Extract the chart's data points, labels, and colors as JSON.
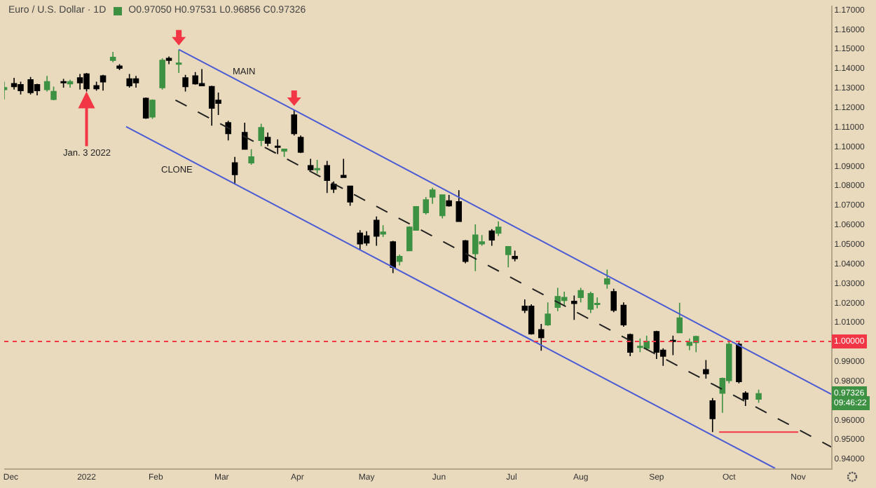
{
  "chart_data": {
    "type": "candlestick",
    "title": "Euro / U.S. Dollar · 1D",
    "subtitle": "O0.97050 H0.97531 L0.96856 C0.97326",
    "legend": false,
    "xlim": [
      "2021-11-29",
      "2022-11-15"
    ],
    "xticks": [
      {
        "value": "2021-12-01",
        "label": "Dec"
      },
      {
        "value": "2022-01-03",
        "label": "2022"
      },
      {
        "value": "2022-02-01",
        "label": "Feb"
      },
      {
        "value": "2022-03-01",
        "label": "Mar"
      },
      {
        "value": "2022-04-01",
        "label": "Apr"
      },
      {
        "value": "2022-05-02",
        "label": "May"
      },
      {
        "value": "2022-06-01",
        "label": "Jun"
      },
      {
        "value": "2022-07-01",
        "label": "Jul"
      },
      {
        "value": "2022-08-01",
        "label": "Aug"
      },
      {
        "value": "2022-09-01",
        "label": "Sep"
      },
      {
        "value": "2022-10-03",
        "label": "Oct"
      },
      {
        "value": "2022-11-01",
        "label": "Nov"
      }
    ],
    "ylim": [
      0.935,
      1.172
    ],
    "yticks": [
      {
        "value": 0.94,
        "label": "0.94000"
      },
      {
        "value": 0.95,
        "label": "0.95000"
      },
      {
        "value": 0.96,
        "label": "0.96000"
      },
      {
        "value": 0.98,
        "label": "0.98000"
      },
      {
        "value": 0.99,
        "label": "0.99000"
      },
      {
        "value": 1.01,
        "label": "1.01000"
      },
      {
        "value": 1.02,
        "label": "1.02000"
      },
      {
        "value": 1.03,
        "label": "1.03000"
      },
      {
        "value": 1.04,
        "label": "1.04000"
      },
      {
        "value": 1.05,
        "label": "1.05000"
      },
      {
        "value": 1.06,
        "label": "1.06000"
      },
      {
        "value": 1.07,
        "label": "1.07000"
      },
      {
        "value": 1.08,
        "label": "1.08000"
      },
      {
        "value": 1.09,
        "label": "1.09000"
      },
      {
        "value": 1.1,
        "label": "1.10000"
      },
      {
        "value": 1.11,
        "label": "1.11000"
      },
      {
        "value": 1.12,
        "label": "1.12000"
      },
      {
        "value": 1.13,
        "label": "1.13000"
      },
      {
        "value": 1.14,
        "label": "1.14000"
      },
      {
        "value": 1.15,
        "label": "1.15000"
      },
      {
        "value": 1.16,
        "label": "1.16000"
      },
      {
        "value": 1.17,
        "label": "1.17000"
      }
    ],
    "ref_lines": [
      {
        "axis": "y",
        "value": 1.0,
        "label": "1.00000",
        "color": "#f23645",
        "line_style": "dotted"
      }
    ],
    "annotations": [
      {
        "text": "Jan. 3 2022",
        "x": "2022-01-03",
        "y": 1.128
      },
      {
        "text": "0.97326",
        "y": 0.97326
      },
      "09:46:22"
    ],
    "series": [
      {
        "color": "#3d9142",
        "x": [
          "2021-11-29",
          "2021-12-16",
          "2021-12-20",
          "2021-12-27",
          "2022-01-13",
          "2022-01-31",
          "2022-02-03",
          "2022-02-10",
          "2022-03-14",
          "2022-03-17",
          "2022-03-28",
          "2022-04-11",
          "2022-05-09",
          "2022-05-16",
          "2022-05-19",
          "2022-05-23",
          "2022-05-26",
          "2022-05-30",
          "2022-06-02",
          "2022-06-16",
          "2022-06-20",
          "2022-06-27",
          "2022-06-30",
          "2022-07-18",
          "2022-07-21",
          "2022-07-25",
          "2022-08-01",
          "2022-08-04",
          "2022-08-08",
          "2022-08-11",
          "2022-08-25",
          "2022-08-29",
          "2022-09-12",
          "2022-09-15",
          "2022-09-19",
          "2022-09-29",
          "2022-10-03",
          "2022-10-14"
        ],
        "ohlc": [
          [
            1.129,
            1.133,
            1.124,
            1.13
          ],
          [
            1.129,
            1.136,
            1.128,
            1.133
          ],
          [
            1.124,
            1.1305,
            1.1235,
            1.128
          ],
          [
            1.132,
            1.134,
            1.13,
            1.133
          ],
          [
            1.144,
            1.1483,
            1.143,
            1.1455
          ],
          [
            1.115,
            1.124,
            1.114,
            1.1235
          ],
          [
            1.13,
            1.145,
            1.129,
            1.144
          ],
          [
            1.142,
            1.1495,
            1.1375,
            1.1425
          ],
          [
            1.0915,
            1.0985,
            1.0905,
            1.0945
          ],
          [
            1.103,
            1.1115,
            1.1,
            1.1095
          ],
          [
            1.0975,
            1.0985,
            1.0945,
            1.0985
          ],
          [
            1.088,
            1.093,
            1.086,
            1.0885
          ],
          [
            1.055,
            1.0595,
            1.0535,
            1.056
          ],
          [
            1.041,
            1.0445,
            1.039,
            1.0435
          ],
          [
            1.0465,
            1.059,
            1.0465,
            1.0585
          ],
          [
            1.057,
            1.069,
            1.057,
            1.069
          ],
          [
            1.066,
            1.074,
            1.065,
            1.0725
          ],
          [
            1.074,
            1.0787,
            1.0705,
            1.0775
          ],
          [
            1.0645,
            1.075,
            1.063,
            1.075
          ],
          [
            1.045,
            1.06,
            1.036,
            1.0545
          ],
          [
            1.05,
            1.0545,
            1.049,
            1.051
          ],
          [
            1.0555,
            1.0615,
            1.054,
            1.0585
          ],
          [
            1.0445,
            1.0485,
            1.038,
            1.0485
          ],
          [
            1.0085,
            1.02,
            1.008,
            1.014
          ],
          [
            1.0175,
            1.0275,
            1.0155,
            1.023
          ],
          [
            1.021,
            1.0255,
            1.018,
            1.0225
          ],
          [
            1.0225,
            1.0275,
            1.02,
            1.026
          ],
          [
            1.0165,
            1.0255,
            1.0145,
            1.0245
          ],
          [
            1.019,
            1.0225,
            1.017,
            1.0195
          ],
          [
            1.0295,
            1.0368,
            1.027,
            1.032
          ],
          [
            0.997,
            1.0015,
            0.9945,
            0.9975
          ],
          [
            0.9965,
            1.003,
            0.9955,
            1.0
          ],
          [
            1.0045,
            1.0198,
            1.0045,
            1.012
          ],
          [
            0.998,
            1.0015,
            0.9955,
            0.9995
          ],
          [
            0.9995,
            1.003,
            0.9945,
            1.0025
          ],
          [
            0.9735,
            0.9815,
            0.9635,
            0.981
          ],
          [
            0.98,
            0.9999,
            0.9785,
            0.9985
          ],
          [
            0.9705,
            0.97531,
            0.96856,
            0.97326
          ]
        ]
      },
      {
        "color": "#000000",
        "x": [
          "2021-12-02",
          "2021-12-06",
          "2021-12-09",
          "2021-12-13",
          "2021-12-23",
          "2021-12-30",
          "2022-01-03",
          "2022-01-06",
          "2022-01-10",
          "2022-01-17",
          "2022-01-20",
          "2022-01-24",
          "2022-01-27",
          "2022-02-07",
          "2022-02-14",
          "2022-02-17",
          "2022-02-21",
          "2022-02-24",
          "2022-02-28",
          "2022-03-03",
          "2022-03-07",
          "2022-03-10",
          "2022-03-21",
          "2022-03-24",
          "2022-03-31",
          "2022-04-04",
          "2022-04-07",
          "2022-04-14",
          "2022-04-18",
          "2022-04-21",
          "2022-04-25",
          "2022-04-28",
          "2022-05-02",
          "2022-05-05",
          "2022-05-12",
          "2022-06-06",
          "2022-06-09",
          "2022-06-13",
          "2022-06-23",
          "2022-07-04",
          "2022-07-07",
          "2022-07-11",
          "2022-07-14",
          "2022-07-28",
          "2022-08-15",
          "2022-08-18",
          "2022-08-22",
          "2022-09-01",
          "2022-09-05",
          "2022-09-08",
          "2022-09-22",
          "2022-09-26",
          "2022-10-06",
          "2022-10-10"
        ],
        "ohlc": [
          [
            1.132,
            1.135,
            1.129,
            1.1305
          ],
          [
            1.1315,
            1.133,
            1.1265,
            1.1285
          ],
          [
            1.134,
            1.1355,
            1.1265,
            1.1275
          ],
          [
            1.1315,
            1.132,
            1.126,
            1.1285
          ],
          [
            1.133,
            1.1345,
            1.13,
            1.1325
          ],
          [
            1.135,
            1.137,
            1.129,
            1.1325
          ],
          [
            1.137,
            1.1375,
            1.128,
            1.1295
          ],
          [
            1.131,
            1.133,
            1.1285,
            1.1295
          ],
          [
            1.136,
            1.1365,
            1.1285,
            1.133
          ],
          [
            1.141,
            1.142,
            1.139,
            1.14
          ],
          [
            1.1345,
            1.137,
            1.13,
            1.131
          ],
          [
            1.1345,
            1.136,
            1.13,
            1.1325
          ],
          [
            1.1245,
            1.125,
            1.114,
            1.1145
          ],
          [
            1.145,
            1.146,
            1.142,
            1.144
          ],
          [
            1.135,
            1.1365,
            1.128,
            1.1305
          ],
          [
            1.136,
            1.138,
            1.1315,
            1.132
          ],
          [
            1.132,
            1.1395,
            1.131,
            1.131
          ],
          [
            1.1305,
            1.131,
            1.1105,
            1.1195
          ],
          [
            1.1235,
            1.1275,
            1.116,
            1.122
          ],
          [
            1.112,
            1.113,
            1.103,
            1.1065
          ],
          [
            1.0915,
            1.0945,
            1.0805,
            1.0855
          ],
          [
            1.107,
            1.112,
            1.0985,
            1.0985
          ],
          [
            1.1045,
            1.107,
            1.1,
            1.1015
          ],
          [
            1.1,
            1.1035,
            1.096,
            1.0995
          ],
          [
            1.116,
            1.1185,
            1.1055,
            1.1065
          ],
          [
            1.1045,
            1.1055,
            1.0965,
            1.097
          ],
          [
            1.09,
            1.0935,
            1.0875,
            1.088
          ],
          [
            1.09,
            1.0925,
            1.076,
            1.0825
          ],
          [
            1.0805,
            1.082,
            1.076,
            1.078
          ],
          [
            1.085,
            1.0935,
            1.084,
            1.084
          ],
          [
            1.0795,
            1.0795,
            1.0695,
            1.0715
          ],
          [
            1.0555,
            1.057,
            1.047,
            1.05
          ],
          [
            1.054,
            1.0565,
            1.049,
            1.0505
          ],
          [
            1.062,
            1.064,
            1.049,
            1.054
          ],
          [
            1.051,
            1.0515,
            1.035,
            1.038
          ],
          [
            1.072,
            1.075,
            1.069,
            1.0695
          ],
          [
            1.0715,
            1.0775,
            1.0615,
            1.0615
          ],
          [
            1.0515,
            1.052,
            1.04,
            1.041
          ],
          [
            1.0565,
            1.0575,
            1.049,
            1.052
          ],
          [
            1.0435,
            1.0465,
            1.041,
            1.0425
          ],
          [
            1.018,
            1.0215,
            1.0145,
            1.016
          ],
          [
            1.018,
            1.019,
            1.0035,
            1.004
          ],
          [
            1.006,
            1.009,
            0.9952,
            1.002
          ],
          [
            1.0205,
            1.0235,
            1.011,
            1.0195
          ],
          [
            1.0255,
            1.027,
            1.015,
            1.016
          ],
          [
            1.0185,
            1.02,
            1.0075,
            1.0085
          ],
          [
            1.0035,
            1.004,
            0.9925,
            0.9945
          ],
          [
            1.005,
            1.0055,
            0.991,
            0.9945
          ],
          [
            0.9955,
            0.9965,
            0.9875,
            0.9925
          ],
          [
            1.0005,
            1.003,
            0.993,
            1.0
          ],
          [
            0.9855,
            0.9905,
            0.981,
            0.9835
          ],
          [
            0.9695,
            0.971,
            0.9536,
            0.9605
          ],
          [
            0.9985,
            0.9995,
            0.9785,
            0.9795
          ],
          [
            0.9735,
            0.9745,
            0.967,
            0.9705
          ]
        ]
      },
      {
        "type": "line",
        "name": "MAIN",
        "color": "#4a5bd4",
        "line_style": "solid",
        "x": [
          "2022-02-10",
          "2022-03-31",
          "2022-11-15"
        ],
        "values": [
          1.1495,
          1.1185,
          0.973
        ]
      },
      {
        "type": "line",
        "name": "CLONE",
        "color": "#4a5bd4",
        "line_style": "solid",
        "x": [
          "2022-01-19",
          "2022-10-21"
        ],
        "values": [
          1.11,
          0.935
        ]
      },
      {
        "type": "line",
        "color": "#222222",
        "line_style": "dashed",
        "x": [
          "2022-02-09",
          "2022-11-15"
        ],
        "values": [
          1.1236,
          0.946
        ]
      },
      {
        "type": "line",
        "color": "#f23645",
        "line_style": "solid",
        "x": [
          "2022-09-28",
          "2022-11-01"
        ],
        "values": [
          0.9536,
          0.9536
        ]
      }
    ]
  }
}
